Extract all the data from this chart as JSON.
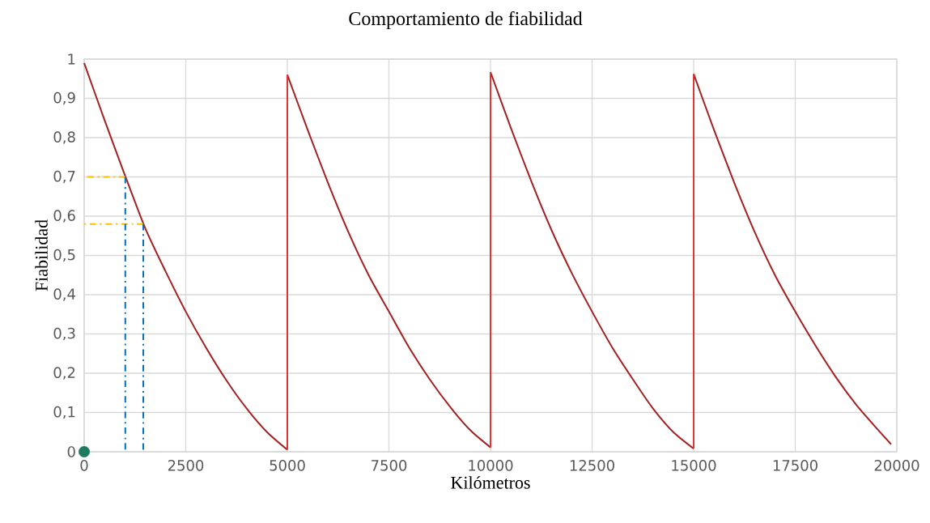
{
  "chart_data": {
    "type": "line",
    "title": "Comportamiento de fiabilidad",
    "xlabel": "Kilómetros",
    "ylabel": "Fiabilidad",
    "xlim": [
      0,
      20000
    ],
    "xticks": [
      0,
      2500,
      5000,
      7500,
      10000,
      12500,
      15000,
      17500,
      20000
    ],
    "ylim": [
      0,
      1
    ],
    "yticks": [
      0,
      {
        "value": 0.1,
        "label": "0,1"
      },
      {
        "value": 0.2,
        "label": "0,2"
      },
      {
        "value": 0.3,
        "label": "0,3"
      },
      {
        "value": 0.4,
        "label": "0,4"
      },
      {
        "value": 0.5,
        "label": "0,5"
      },
      {
        "value": 0.6,
        "label": "0,6"
      },
      {
        "value": 0.7,
        "label": "0,7"
      },
      {
        "value": 0.8,
        "label": "0,8"
      },
      {
        "value": 0.9,
        "label": "0,9"
      },
      1
    ],
    "grid": true,
    "marker": "none",
    "line_style": "solid",
    "series": [
      {
        "color": "#a52020",
        "x": [
          0,
          500,
          1000,
          1500,
          2000,
          2500,
          3000,
          3500,
          4000,
          4500,
          5000
        ],
        "values": [
          0.99,
          0.845,
          0.705,
          0.57,
          0.46,
          0.357,
          0.265,
          0.182,
          0.11,
          0.05,
          0.005
        ]
      },
      {
        "color": "#a52020",
        "x": [
          5000,
          5500,
          6000,
          6500,
          7000,
          7500,
          8000,
          8500,
          9000,
          9500,
          10000
        ],
        "values": [
          0.96,
          0.82,
          0.685,
          0.56,
          0.45,
          0.357,
          0.265,
          0.185,
          0.115,
          0.055,
          0.011
        ]
      },
      {
        "color": "#a52020",
        "x": [
          10000,
          10500,
          11000,
          11500,
          12000,
          12500,
          13000,
          13500,
          14000,
          14500,
          15000
        ],
        "values": [
          0.967,
          0.825,
          0.69,
          0.565,
          0.455,
          0.357,
          0.265,
          0.185,
          0.11,
          0.05,
          0.008
        ]
      },
      {
        "color": "#a52020",
        "x": [
          15000,
          15500,
          16000,
          16500,
          17000,
          17500,
          18000,
          18500,
          19000,
          19500,
          19860
        ],
        "values": [
          0.962,
          0.82,
          0.685,
          0.56,
          0.45,
          0.357,
          0.27,
          0.19,
          0.12,
          0.06,
          0.019
        ]
      },
      {
        "color": "#e03535",
        "x": [
          5000,
          5000
        ],
        "values": [
          0.005,
          0.96
        ]
      },
      {
        "color": "#e03535",
        "x": [
          10000,
          10000
        ],
        "values": [
          0.011,
          0.967
        ]
      },
      {
        "color": "#e03535",
        "x": [
          15000,
          15000
        ],
        "values": [
          0.008,
          0.962
        ]
      },
      {
        "color": "#ffc000",
        "line_style": "dashdot",
        "x": [
          1012,
          0
        ],
        "values": [
          0.7,
          0.7
        ]
      },
      {
        "color": "#ffc000",
        "line_style": "dashdot",
        "x": [
          1455,
          0
        ],
        "values": [
          0.58,
          0.58
        ]
      },
      {
        "color": "#0070c0",
        "line_style": "dashdot",
        "x": [
          1012,
          1012
        ],
        "values": [
          0.7,
          0
        ]
      },
      {
        "color": "#0070c0",
        "line_style": "dashdot",
        "x": [
          1455,
          1455
        ],
        "values": [
          0.58,
          0
        ]
      },
      {
        "type": "scatter",
        "marker": "circle",
        "color": "#1e7a60",
        "x": [
          0
        ],
        "values": [
          0
        ]
      }
    ]
  }
}
